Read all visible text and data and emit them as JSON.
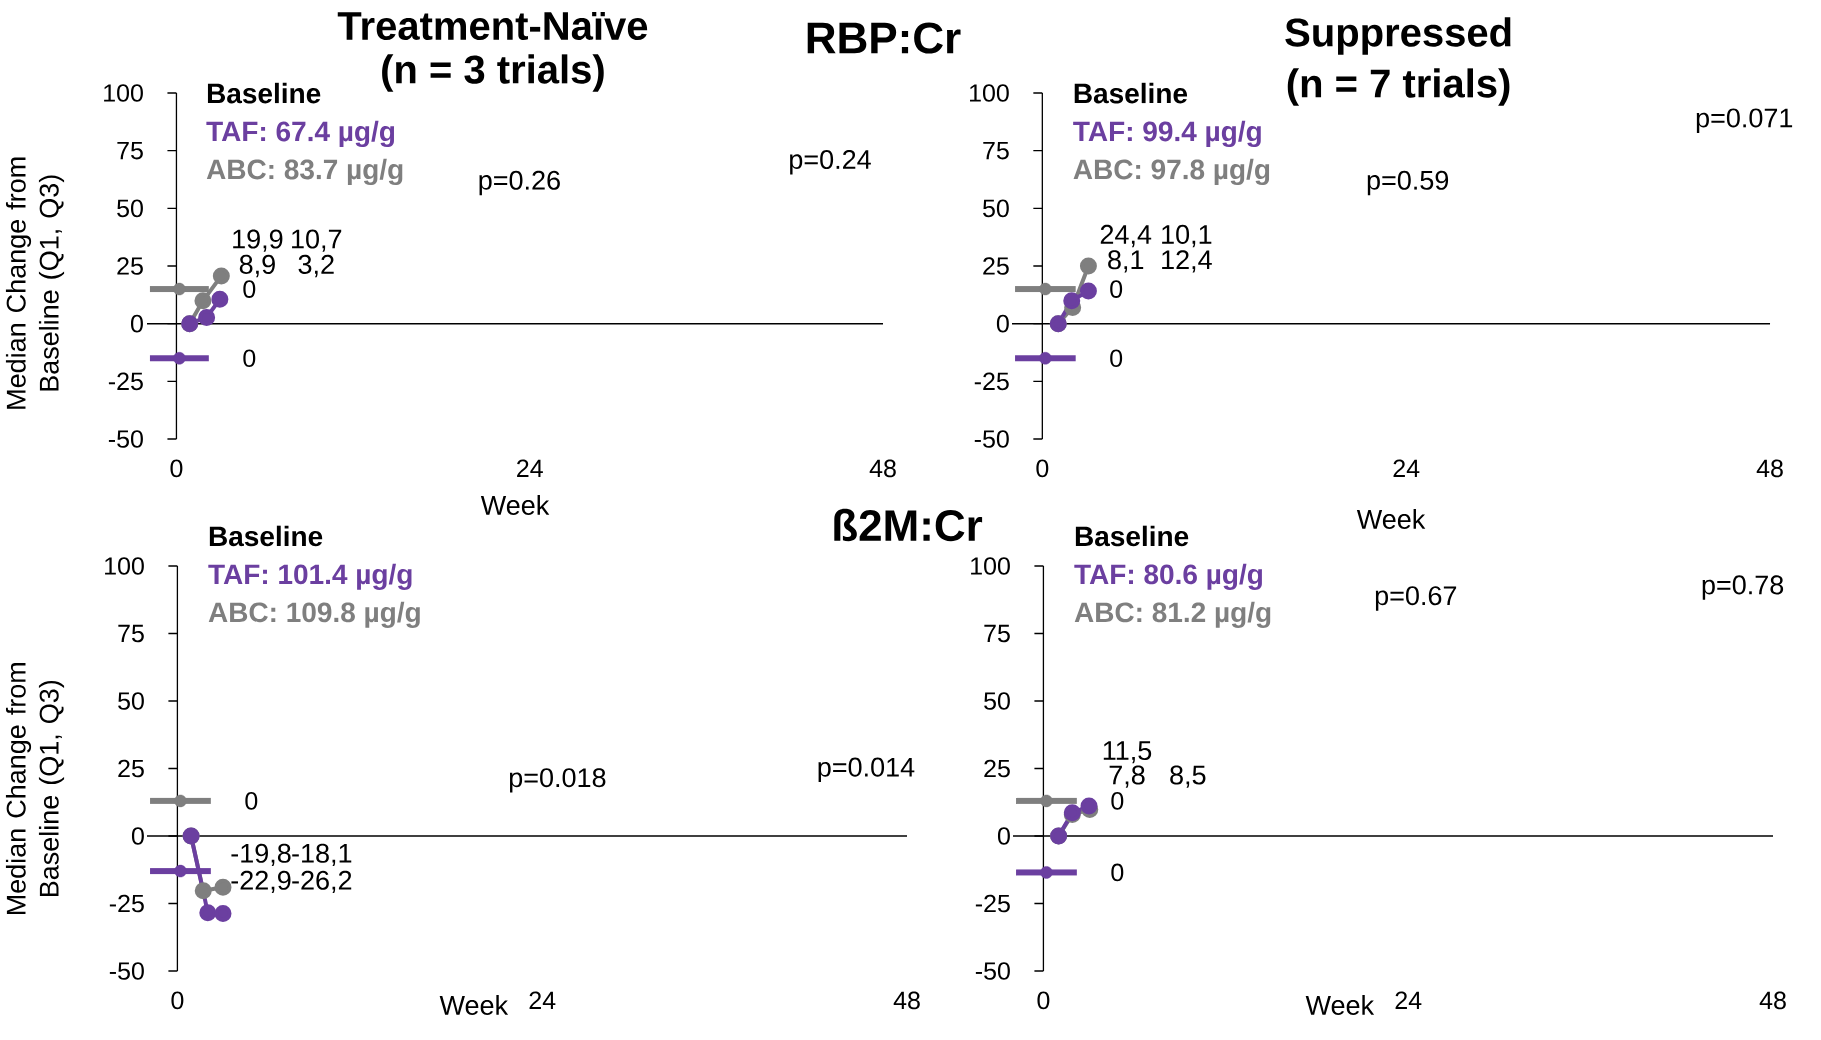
{
  "chart_data": [
    {
      "type": "line",
      "title": "Treatment-Naïve",
      "subtitle": "(n = 3 trials)",
      "xlabel": "Week",
      "ylabel": "Median Change from Baseline (Q1, Q3)",
      "legend": "top left",
      "legend_title": "Baseline",
      "marker": "circle",
      "xlim": [
        -2,
        48
      ],
      "xticks": [
        0,
        24,
        48
      ],
      "ylim": [
        -50,
        100
      ],
      "yticks": [
        -50,
        -25,
        0,
        25,
        50,
        75,
        100
      ],
      "ref_lines": [
        {
          "axis": "y",
          "value": 0
        }
      ],
      "series": [
        {
          "name": "TAF: 67.4 µg/g",
          "color": "#6b3fa0",
          "x": [
            0.9,
            2.05,
            2.95
          ],
          "values": [
            0,
            2.7,
            10.6
          ]
        },
        {
          "name": "ABC: 83.7 µg/g",
          "color": "#7f7f7f",
          "x": [
            0.9,
            1.8,
            3.05
          ],
          "values": [
            0,
            9.9,
            20.7
          ]
        },
        {
          "type": "scatter",
          "color": "#7f7f7f",
          "x": [
            0.2
          ],
          "values": [
            15
          ],
          "xerrors": [
            2
          ]
        },
        {
          "type": "scatter",
          "color": "#6b3fa0",
          "x": [
            0.2
          ],
          "values": [
            -15
          ],
          "xerrors": [
            2
          ]
        }
      ],
      "annotations": [
        "RBP:Cr",
        "p=0.26",
        "p=0.24",
        "19,9",
        "10,7",
        "8,9",
        "3,2",
        "0",
        "0"
      ]
    },
    {
      "type": "line",
      "title": "Suppressed",
      "subtitle": "(n = 7 trials)",
      "xlabel": "Week",
      "legend": "top left",
      "legend_title": "Baseline",
      "marker": "circle",
      "xlim": [
        -2,
        48
      ],
      "xticks": [
        0,
        24,
        48
      ],
      "ylim": [
        -50,
        100
      ],
      "yticks": [
        -50,
        -25,
        0,
        25,
        50,
        75,
        100
      ],
      "ref_lines": [
        {
          "axis": "y",
          "value": 0
        }
      ],
      "series": [
        {
          "name": "TAF: 99.4 µg/g",
          "color": "#6b3fa0",
          "x": [
            1.05,
            1.94,
            3.04
          ],
          "values": [
            0,
            9.9,
            14.2
          ]
        },
        {
          "name": "ABC: 97.8 µg/g",
          "color": "#7f7f7f",
          "x": [
            1.05,
            2.0,
            3.04
          ],
          "values": [
            0,
            7,
            25
          ]
        },
        {
          "type": "scatter",
          "color": "#7f7f7f",
          "x": [
            0.2
          ],
          "values": [
            15
          ],
          "xerrors": [
            2
          ]
        },
        {
          "type": "scatter",
          "color": "#6b3fa0",
          "x": [
            0.2
          ],
          "values": [
            -15
          ],
          "xerrors": [
            2
          ]
        }
      ],
      "annotations": [
        "p=0.59",
        "p=0.071",
        "24,4",
        "10,1",
        "8,1",
        "12,4",
        "0",
        "0"
      ]
    },
    {
      "type": "line",
      "xlabel": "Week",
      "ylabel": "Median Change from Baseline (Q1, Q3)",
      "legend": "top left",
      "legend_title": "Baseline",
      "marker": "circle",
      "xlim": [
        -2,
        48
      ],
      "xticks": [
        0,
        24,
        48
      ],
      "ylim": [
        -50,
        100
      ],
      "yticks": [
        -50,
        -25,
        0,
        25,
        50,
        75,
        100
      ],
      "ref_lines": [
        {
          "axis": "y",
          "value": 0
        }
      ],
      "series": [
        {
          "name": "TAF: 101.4 µg/g",
          "color": "#6b3fa0",
          "x": [
            0.9,
            2.0,
            3.0
          ],
          "values": [
            0,
            -28.4,
            -28.7
          ]
        },
        {
          "name": "ABC: 109.8 µg/g",
          "color": "#7f7f7f",
          "x": [
            0.9,
            1.7,
            3.0
          ],
          "values": [
            0,
            -20.3,
            -19
          ]
        },
        {
          "type": "scatter",
          "color": "#7f7f7f",
          "x": [
            0.2
          ],
          "values": [
            13
          ],
          "xerrors": [
            2
          ]
        },
        {
          "type": "scatter",
          "color": "#6b3fa0",
          "x": [
            0.2
          ],
          "values": [
            -13
          ],
          "xerrors": [
            2
          ]
        }
      ],
      "annotations": [
        "ß2M:Cr",
        "p=0.018",
        "p=0.014",
        "-19,8",
        "-18,1",
        "-22,9",
        "-26,2",
        "0"
      ]
    },
    {
      "type": "line",
      "xlabel": "Week",
      "legend": "top left",
      "legend_title": "Baseline",
      "marker": "circle",
      "xlim": [
        -2,
        48
      ],
      "xticks": [
        0,
        24,
        48
      ],
      "ylim": [
        -50,
        100
      ],
      "yticks": [
        -50,
        -25,
        0,
        25,
        50,
        75,
        100
      ],
      "ref_lines": [
        {
          "axis": "y",
          "value": 0
        }
      ],
      "series": [
        {
          "name": "TAF: 80.6 µg/g",
          "color": "#6b3fa0",
          "x": [
            1.0,
            1.9,
            3.0
          ],
          "values": [
            0,
            8.6,
            11.1
          ]
        },
        {
          "name": "ABC: 81.2 µg/g",
          "color": "#7f7f7f",
          "x": [
            1.0,
            1.9,
            3.05
          ],
          "values": [
            0,
            8,
            9.8
          ]
        },
        {
          "type": "scatter",
          "color": "#7f7f7f",
          "x": [
            0.2
          ],
          "values": [
            13
          ],
          "xerrors": [
            2
          ]
        },
        {
          "type": "scatter",
          "color": "#6b3fa0",
          "x": [
            0.2
          ],
          "values": [
            -13.5
          ],
          "xerrors": [
            2
          ]
        }
      ],
      "annotations": [
        "p=0.67",
        "p=0.78",
        "7,8",
        "8,5",
        "11,5",
        "0",
        "0"
      ]
    }
  ]
}
